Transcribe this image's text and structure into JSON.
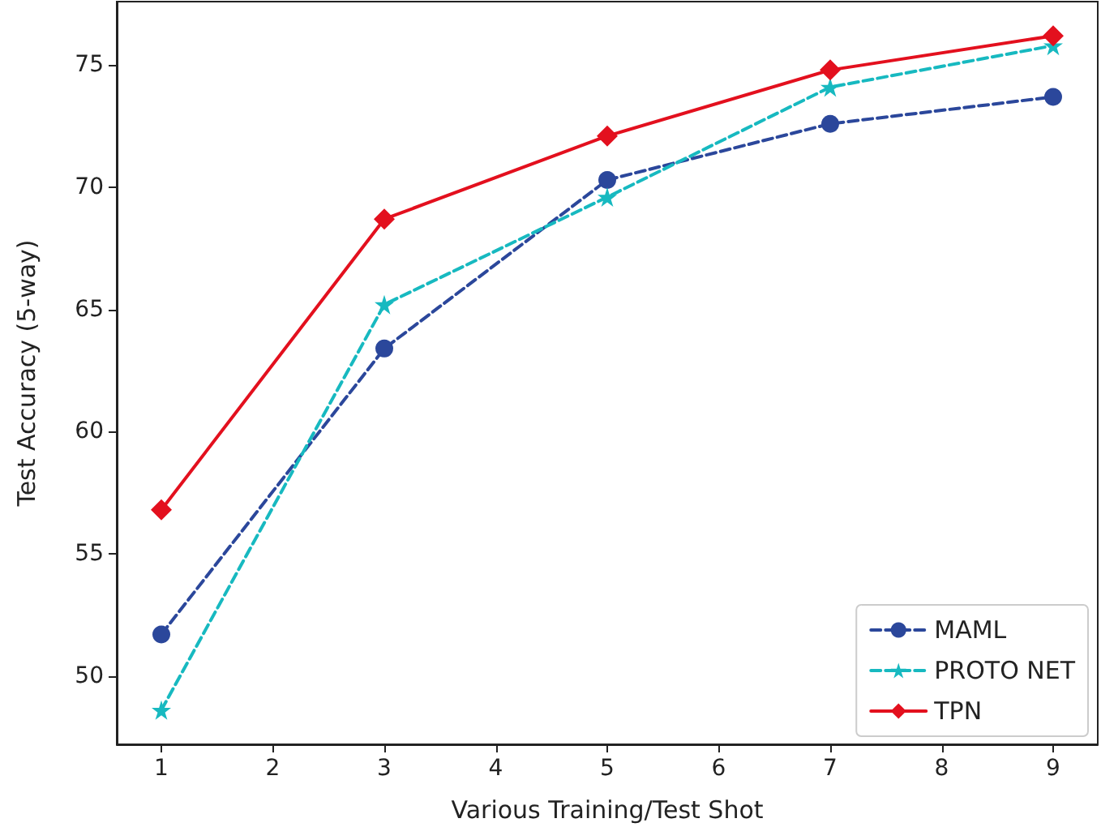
{
  "chart_data": {
    "type": "line",
    "xlabel": "Various Training/Test Shot",
    "ylabel": "Test Accuracy (5-way)",
    "x": [
      1,
      3,
      5,
      7,
      9
    ],
    "series": [
      {
        "name": "MAML",
        "color": "#2b479b",
        "marker": "circle",
        "line_style": "dashed",
        "values": [
          51.7,
          63.4,
          70.3,
          72.6,
          73.7
        ]
      },
      {
        "name": "PROTO NET",
        "color": "#17b9c0",
        "marker": "star",
        "line_style": "dashed",
        "values": [
          48.6,
          65.2,
          69.6,
          74.1,
          75.8
        ]
      },
      {
        "name": "TPN",
        "color": "#e3101e",
        "marker": "diamond",
        "line_style": "solid",
        "values": [
          56.8,
          68.7,
          72.1,
          74.8,
          76.2
        ]
      }
    ],
    "xlim": [
      0.6,
      9.4
    ],
    "xticks": [
      1,
      2,
      3,
      4,
      5,
      6,
      7,
      8,
      9
    ],
    "ylim": [
      47.2,
      77.6
    ],
    "yticks": [
      50,
      55,
      60,
      65,
      70,
      75
    ],
    "grid": false,
    "legend": "bottom right"
  }
}
